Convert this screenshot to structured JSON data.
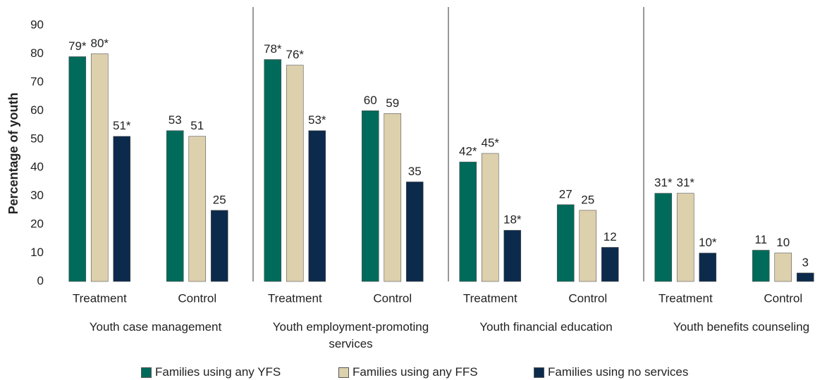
{
  "chart_data": {
    "type": "bar",
    "ylabel": "Percentage of youth",
    "categories": [
      "Treatment",
      "Control",
      "Treatment",
      "Control",
      "Treatment",
      "Control",
      "Treatment",
      "Control"
    ],
    "category_groups": [
      "Youth case management",
      "Youth employment-promoting services",
      "Youth financial education",
      "Youth benefits counseling"
    ],
    "series": [
      {
        "name": "Families using any YFS",
        "color": "#006b5b",
        "values": [
          79,
          53,
          78,
          60,
          42,
          27,
          31,
          11
        ],
        "value_labels": [
          "79*",
          "53",
          "78*",
          "60",
          "42*",
          "27",
          "31*",
          "11"
        ]
      },
      {
        "name": "Families using any FFS",
        "color": "#ddd0ad",
        "values": [
          80,
          51,
          76,
          59,
          45,
          25,
          31,
          10
        ],
        "value_labels": [
          "80*",
          "51",
          "76*",
          "59",
          "45*",
          "25",
          "31*",
          "10"
        ]
      },
      {
        "name": "Families using no services",
        "color": "#0c2a4b",
        "values": [
          51,
          25,
          53,
          35,
          18,
          12,
          10,
          3
        ],
        "value_labels": [
          "51*",
          "25",
          "53*",
          "35",
          "18*",
          "12",
          "10*",
          "3"
        ]
      }
    ],
    "ylim": [
      0,
      90
    ],
    "yticks": [
      0,
      10,
      20,
      30,
      40,
      50,
      60,
      70,
      80,
      90
    ],
    "grid": false,
    "legend": "bottom"
  }
}
